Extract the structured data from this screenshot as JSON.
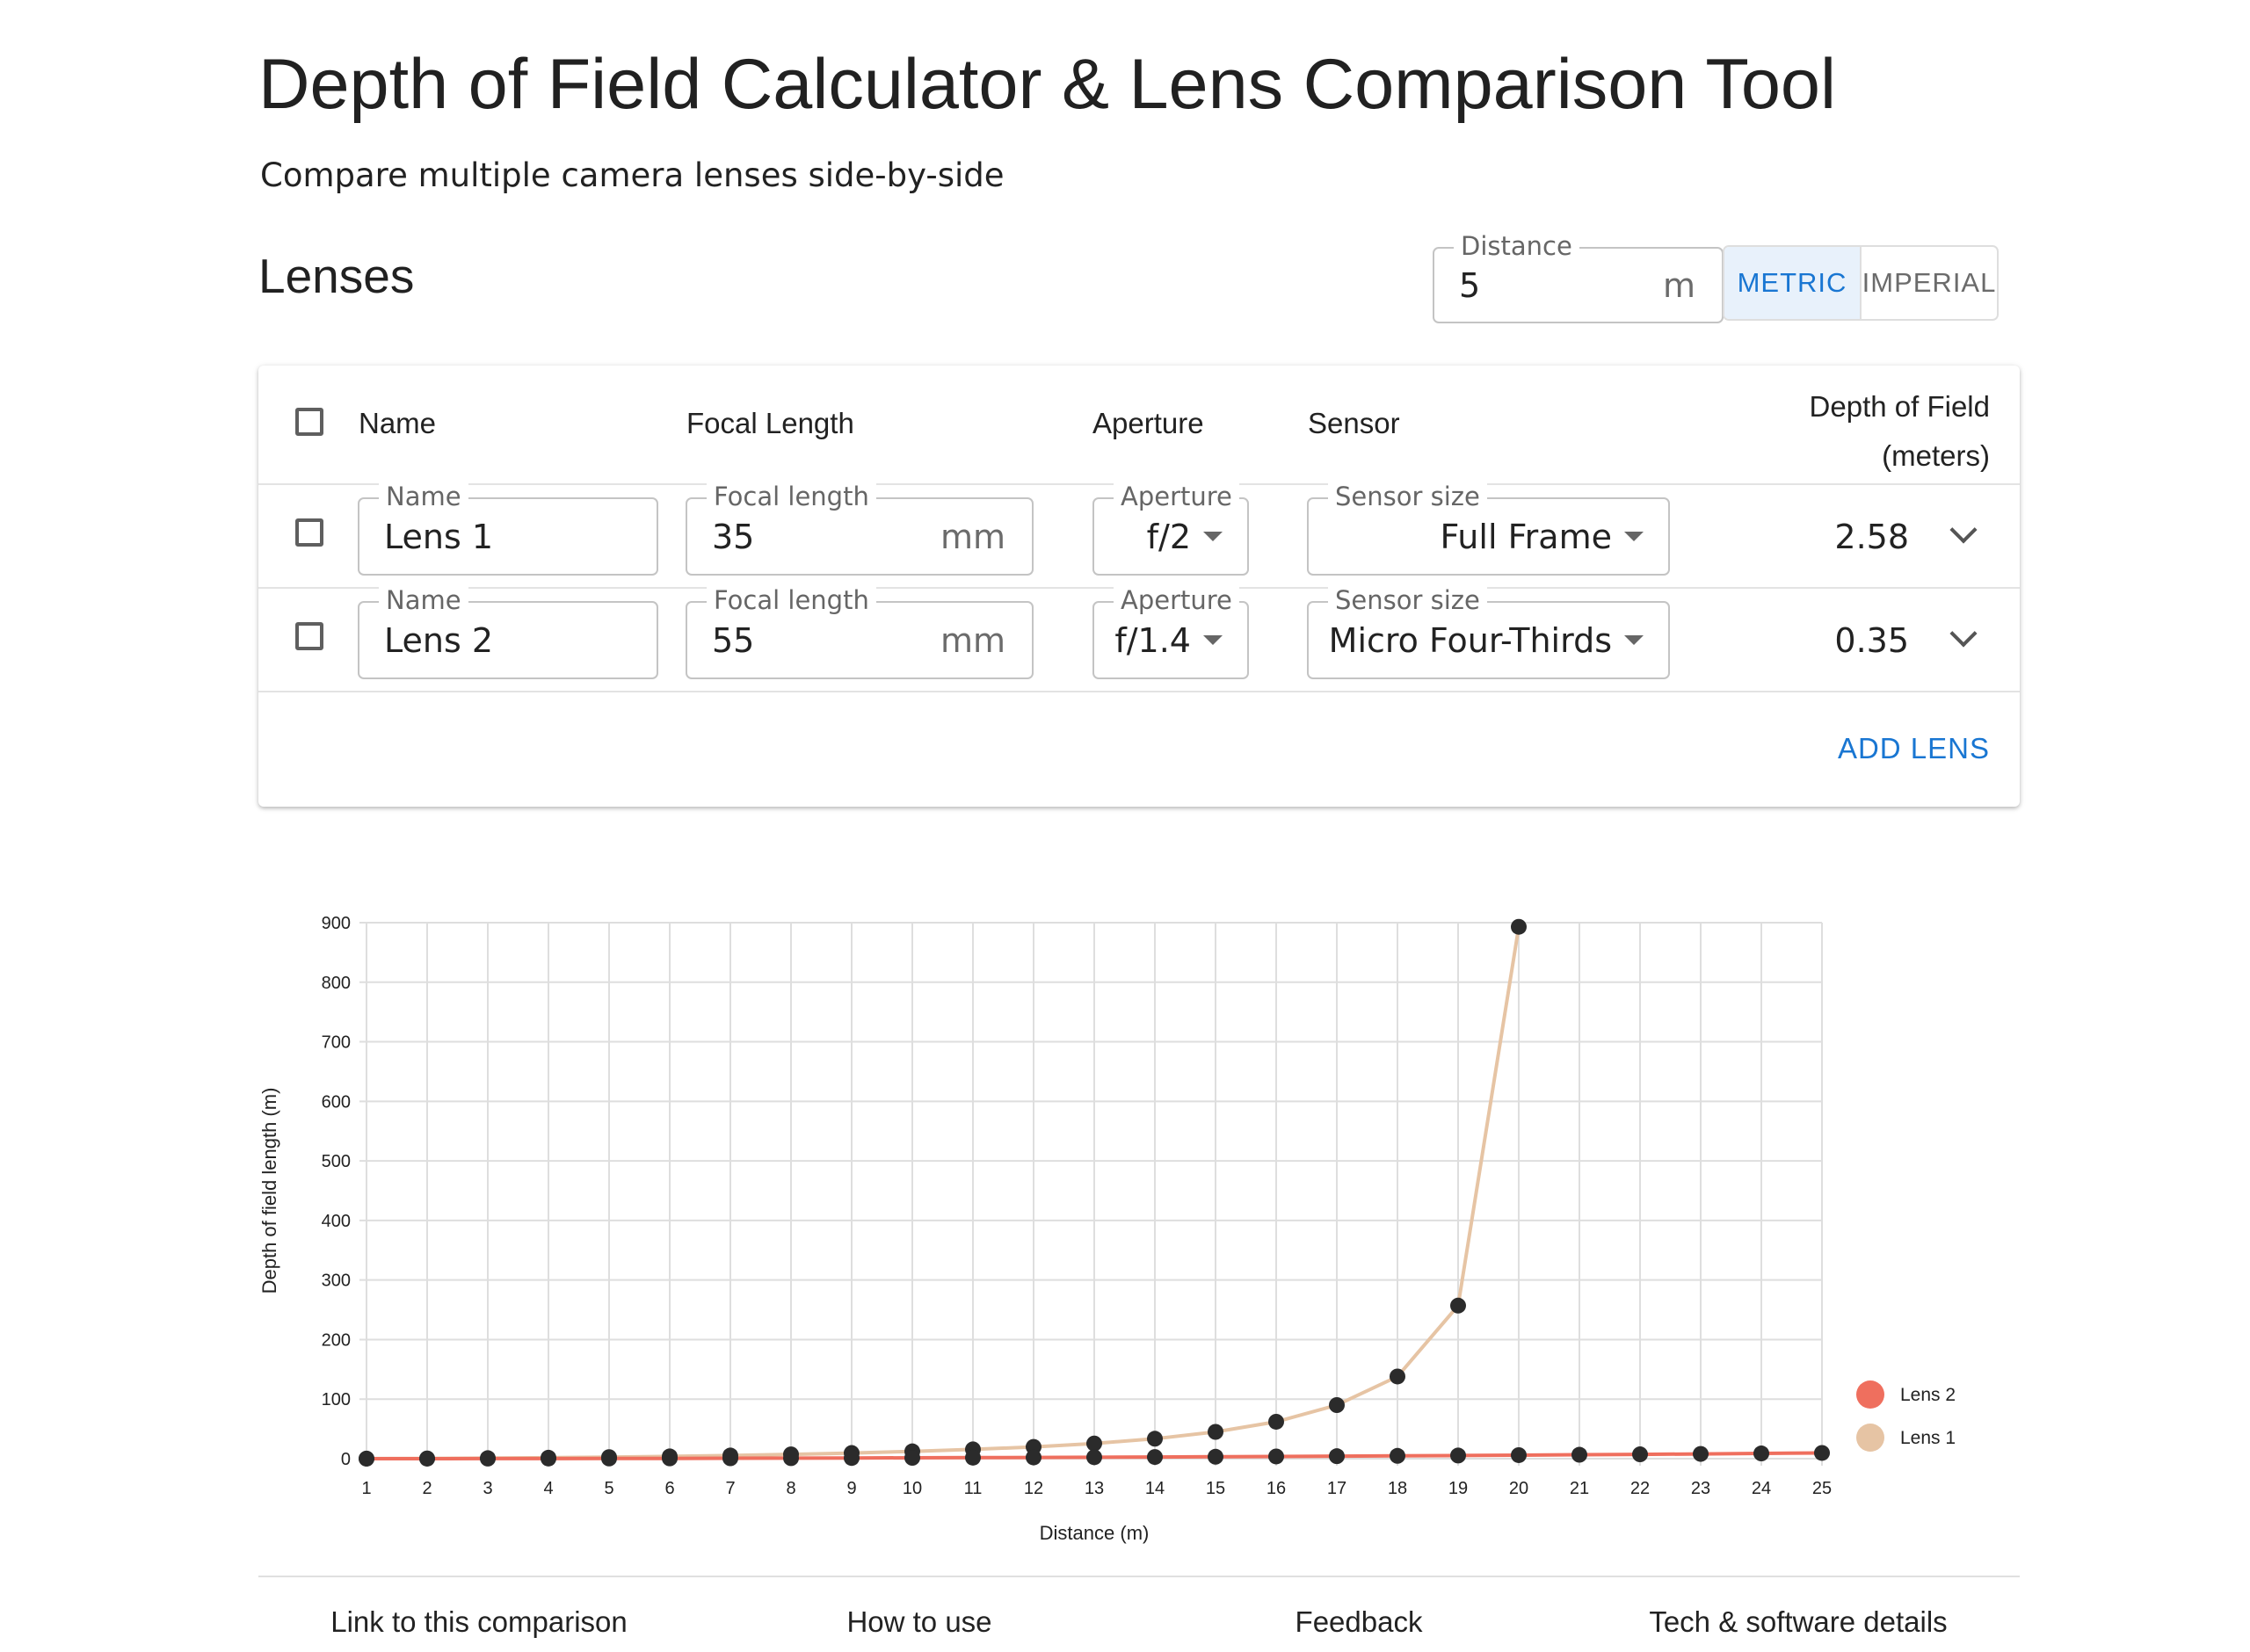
{
  "page": {
    "title": "Depth of Field Calculator & Lens Comparison Tool",
    "subtitle": "Compare multiple camera lenses side-by-side",
    "section_title": "Lenses"
  },
  "distance": {
    "label": "Distance",
    "value": "5",
    "unit": "m"
  },
  "units_toggle": {
    "metric": "METRIC",
    "imperial": "IMPERIAL",
    "selected": "metric"
  },
  "table": {
    "headers": {
      "name": "Name",
      "focal_length": "Focal Length",
      "aperture": "Aperture",
      "sensor": "Sensor",
      "dof_line1": "Depth of Field",
      "dof_line2": "(meters)"
    },
    "rows": [
      {
        "name_label": "Name",
        "name": "Lens 1",
        "focal_label": "Focal length",
        "focal": "35",
        "focal_unit": "mm",
        "aperture_label": "Aperture",
        "aperture": "f/2",
        "sensor_label": "Sensor size",
        "sensor": "Full Frame",
        "dof": "2.58"
      },
      {
        "name_label": "Name",
        "name": "Lens 2",
        "focal_label": "Focal length",
        "focal": "55",
        "focal_unit": "mm",
        "aperture_label": "Aperture",
        "aperture": "f/1.4",
        "sensor_label": "Sensor size",
        "sensor": "Micro Four-Thirds",
        "dof": "0.35"
      }
    ],
    "add_lens": "ADD LENS"
  },
  "chart_data": {
    "type": "line",
    "xlabel": "Distance (m)",
    "ylabel": "Depth of field length (m)",
    "ylim": [
      0,
      900
    ],
    "yticks": [
      0,
      100,
      200,
      300,
      400,
      500,
      600,
      700,
      800,
      900
    ],
    "x": [
      1,
      2,
      3,
      4,
      5,
      6,
      7,
      8,
      9,
      10,
      11,
      12,
      13,
      14,
      15,
      16,
      17,
      18,
      19,
      20,
      21,
      22,
      23,
      24,
      25
    ],
    "grid": true,
    "legend_position": "right",
    "series": [
      {
        "name": "Lens 1",
        "color": "#e6c4a4",
        "values": [
          0.1,
          0.4,
          0.9,
          1.6,
          2.6,
          3.8,
          5.3,
          7.2,
          9.5,
          12.3,
          15.6,
          19.8,
          25.5,
          33.5,
          45,
          62,
          90,
          138,
          257,
          893,
          null,
          null,
          null,
          null,
          null
        ]
      },
      {
        "name": "Lens 2",
        "color": "#ef6f5e",
        "values": [
          0.01,
          0.05,
          0.11,
          0.2,
          0.35,
          0.5,
          0.69,
          0.91,
          1.15,
          1.43,
          1.73,
          2.07,
          2.43,
          2.83,
          3.27,
          3.73,
          4.23,
          4.77,
          5.34,
          5.95,
          6.6,
          7.29,
          8.02,
          8.79,
          9.6
        ]
      }
    ],
    "point_color": "#2b2b2b"
  },
  "footer": {
    "links": [
      "Link to this comparison",
      "How to use",
      "Feedback",
      "Tech & software details"
    ]
  }
}
